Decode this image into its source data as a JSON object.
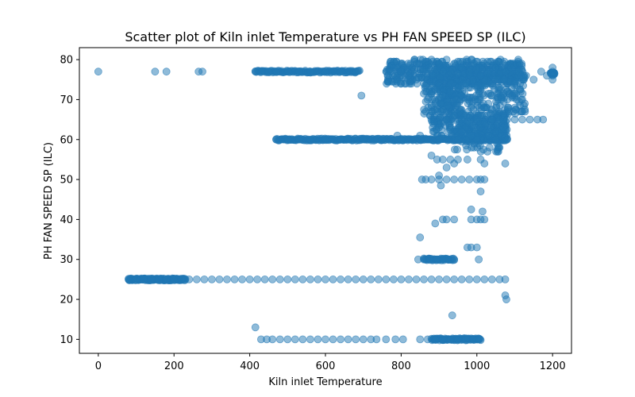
{
  "chart_data": {
    "type": "scatter",
    "title": "Scatter plot of Kiln inlet Temperature vs PH FAN SPEED SP (ILC)",
    "xlabel": "Kiln inlet Temperature",
    "ylabel": "PH FAN SPEED SP (ILC)",
    "xlim": [
      -50,
      1250
    ],
    "ylim": [
      6.5,
      83
    ],
    "xticks": [
      0,
      200,
      400,
      600,
      800,
      1000,
      1200
    ],
    "yticks": [
      10,
      20,
      30,
      40,
      50,
      60,
      70,
      80
    ],
    "grid": false,
    "marker_color": "#1f77b4",
    "marker_alpha": 0.5,
    "points": [
      [
        0,
        77
      ],
      [
        150,
        77
      ],
      [
        180,
        77
      ],
      [
        265,
        77
      ],
      [
        275,
        77
      ],
      [
        415,
        77
      ],
      [
        430,
        77
      ],
      [
        450,
        77
      ],
      [
        470,
        77
      ],
      [
        500,
        77
      ],
      [
        530,
        77
      ],
      [
        560,
        77
      ],
      [
        600,
        77
      ],
      [
        640,
        77
      ],
      [
        680,
        77
      ],
      [
        695,
        71
      ],
      [
        660,
        60
      ],
      [
        470,
        60
      ],
      [
        500,
        60
      ],
      [
        530,
        60
      ],
      [
        560,
        60
      ],
      [
        600,
        60
      ],
      [
        640,
        60
      ],
      [
        700,
        60
      ],
      [
        750,
        60
      ],
      [
        800,
        60
      ],
      [
        850,
        60
      ],
      [
        900,
        60
      ],
      [
        950,
        60
      ],
      [
        1000,
        60
      ],
      [
        1050,
        60
      ],
      [
        1080,
        60
      ],
      [
        790,
        61
      ],
      [
        850,
        61
      ],
      [
        880,
        56
      ],
      [
        895,
        55
      ],
      [
        910,
        55
      ],
      [
        930,
        55
      ],
      [
        950,
        55
      ],
      [
        975,
        55
      ],
      [
        1010,
        55
      ],
      [
        1020,
        54
      ],
      [
        920,
        53
      ],
      [
        940,
        54
      ],
      [
        1075,
        54
      ],
      [
        855,
        50
      ],
      [
        865,
        50
      ],
      [
        880,
        50
      ],
      [
        900,
        50
      ],
      [
        920,
        50
      ],
      [
        940,
        50
      ],
      [
        960,
        50
      ],
      [
        980,
        50
      ],
      [
        1000,
        50
      ],
      [
        1010,
        50
      ],
      [
        1020,
        50
      ],
      [
        900,
        51
      ],
      [
        905,
        48.5
      ],
      [
        1010,
        47
      ],
      [
        920,
        40
      ],
      [
        940,
        40
      ],
      [
        985,
        40
      ],
      [
        1000,
        40
      ],
      [
        1010,
        40
      ],
      [
        1020,
        40
      ],
      [
        890,
        39
      ],
      [
        910,
        40
      ],
      [
        985,
        42.5
      ],
      [
        1015,
        42
      ],
      [
        850,
        35.5
      ],
      [
        975,
        33
      ],
      [
        985,
        33
      ],
      [
        1000,
        33
      ],
      [
        1005,
        30
      ],
      [
        845,
        30
      ],
      [
        860,
        30
      ],
      [
        875,
        30
      ],
      [
        895,
        30
      ],
      [
        910,
        30
      ],
      [
        925,
        30
      ],
      [
        940,
        30
      ],
      [
        1075,
        21
      ],
      [
        1078,
        20
      ],
      [
        935,
        16
      ],
      [
        415,
        13
      ],
      [
        430,
        10
      ],
      [
        445,
        10
      ],
      [
        460,
        10
      ],
      [
        480,
        10
      ],
      [
        500,
        10
      ],
      [
        520,
        10
      ],
      [
        540,
        10
      ],
      [
        560,
        10
      ],
      [
        580,
        10
      ],
      [
        600,
        10
      ],
      [
        620,
        10
      ],
      [
        640,
        10
      ],
      [
        660,
        10
      ],
      [
        680,
        10
      ],
      [
        700,
        10
      ],
      [
        720,
        10
      ],
      [
        735,
        10
      ],
      [
        760,
        10
      ],
      [
        785,
        10
      ],
      [
        805,
        10
      ],
      [
        850,
        10
      ],
      [
        870,
        10
      ],
      [
        890,
        10
      ],
      [
        910,
        10
      ],
      [
        930,
        10
      ],
      [
        950,
        10
      ],
      [
        970,
        10
      ],
      [
        990,
        10
      ],
      [
        1005,
        10
      ],
      [
        80,
        25
      ],
      [
        100,
        25
      ],
      [
        120,
        25
      ],
      [
        140,
        25
      ],
      [
        160,
        25
      ],
      [
        180,
        25
      ],
      [
        200,
        25
      ],
      [
        220,
        25
      ],
      [
        240,
        25
      ],
      [
        260,
        25
      ],
      [
        280,
        25
      ],
      [
        300,
        25
      ],
      [
        320,
        25
      ],
      [
        340,
        25
      ],
      [
        360,
        25
      ],
      [
        380,
        25
      ],
      [
        400,
        25
      ],
      [
        420,
        25
      ],
      [
        440,
        25
      ],
      [
        460,
        25
      ],
      [
        480,
        25
      ],
      [
        500,
        25
      ],
      [
        520,
        25
      ],
      [
        540,
        25
      ],
      [
        560,
        25
      ],
      [
        580,
        25
      ],
      [
        600,
        25
      ],
      [
        620,
        25
      ],
      [
        640,
        25
      ],
      [
        660,
        25
      ],
      [
        680,
        25
      ],
      [
        700,
        25
      ],
      [
        720,
        25
      ],
      [
        740,
        25
      ],
      [
        760,
        25
      ],
      [
        780,
        25
      ],
      [
        800,
        25
      ],
      [
        820,
        25
      ],
      [
        840,
        25
      ],
      [
        860,
        25
      ],
      [
        880,
        25
      ],
      [
        900,
        25
      ],
      [
        920,
        25
      ],
      [
        940,
        25
      ],
      [
        960,
        25
      ],
      [
        980,
        25
      ],
      [
        1000,
        25
      ],
      [
        1020,
        25
      ],
      [
        1040,
        25
      ],
      [
        1060,
        25
      ],
      [
        1075,
        25
      ],
      [
        1200,
        78
      ],
      [
        1200,
        77
      ],
      [
        1200,
        76
      ],
      [
        1200,
        75
      ],
      [
        1170,
        77
      ],
      [
        1185,
        76
      ],
      [
        880,
        67
      ],
      [
        905,
        67
      ],
      [
        925,
        62
      ],
      [
        955,
        67
      ],
      [
        985,
        68
      ],
      [
        1010,
        66
      ],
      [
        880,
        80
      ],
      [
        900,
        79
      ],
      [
        920,
        80
      ],
      [
        940,
        79
      ],
      [
        960,
        78
      ],
      [
        980,
        77
      ],
      [
        1000,
        76
      ],
      [
        1020,
        75
      ],
      [
        1040,
        74
      ],
      [
        1060,
        73
      ],
      [
        1080,
        72
      ],
      [
        1100,
        71
      ],
      [
        1120,
        70
      ],
      [
        780,
        78
      ],
      [
        800,
        77
      ],
      [
        820,
        76
      ],
      [
        840,
        75
      ],
      [
        860,
        74
      ],
      [
        870,
        70
      ],
      [
        890,
        69
      ],
      [
        910,
        71
      ],
      [
        930,
        72
      ],
      [
        950,
        73
      ],
      [
        970,
        74
      ],
      [
        990,
        75
      ],
      [
        1010,
        76
      ],
      [
        1030,
        77
      ],
      [
        1050,
        78
      ],
      [
        1070,
        79
      ],
      [
        1090,
        78
      ],
      [
        1110,
        77
      ],
      [
        1130,
        76
      ],
      [
        1150,
        75
      ],
      [
        960,
        65
      ],
      [
        980,
        64
      ],
      [
        1000,
        65
      ],
      [
        1020,
        64
      ],
      [
        1040,
        65
      ],
      [
        1060,
        65
      ],
      [
        1080,
        65
      ],
      [
        1100,
        65
      ],
      [
        1120,
        65
      ],
      [
        1140,
        65
      ],
      [
        1160,
        65
      ],
      [
        1175,
        65
      ],
      [
        880,
        65
      ],
      [
        900,
        63
      ],
      [
        920,
        65
      ],
      [
        940,
        66
      ],
      [
        960,
        62
      ],
      [
        985,
        61
      ],
      [
        1010,
        63
      ],
      [
        1030,
        61
      ],
      [
        1050,
        62
      ],
      [
        1070,
        63
      ]
    ],
    "dense_regions": [
      {
        "x": [
          760,
          1120
        ],
        "y": [
          74,
          80
        ],
        "count": 420
      },
      {
        "x": [
          860,
          1130
        ],
        "y": [
          66,
          78
        ],
        "count": 380
      },
      {
        "x": [
          880,
          1080
        ],
        "y": [
          60.5,
          66
        ],
        "count": 220
      },
      {
        "x": [
          940,
          1060
        ],
        "y": [
          57,
          64
        ],
        "count": 80
      },
      {
        "x": [
          890,
          960
        ],
        "y": [
          68,
          74
        ],
        "count": 60
      }
    ],
    "dense_rows": [
      {
        "x": [
          415,
          690
        ],
        "y": 77,
        "count": 120
      },
      {
        "x": [
          470,
          1080
        ],
        "y": 60,
        "count": 280
      },
      {
        "x": [
          80,
          230
        ],
        "y": 25,
        "count": 140
      },
      {
        "x": [
          880,
          1010
        ],
        "y": 10,
        "count": 80
      },
      {
        "x": [
          860,
          940
        ],
        "y": 30,
        "count": 40
      },
      {
        "x": [
          1195,
          1205
        ],
        "y": 76.5,
        "count": 30
      }
    ]
  }
}
